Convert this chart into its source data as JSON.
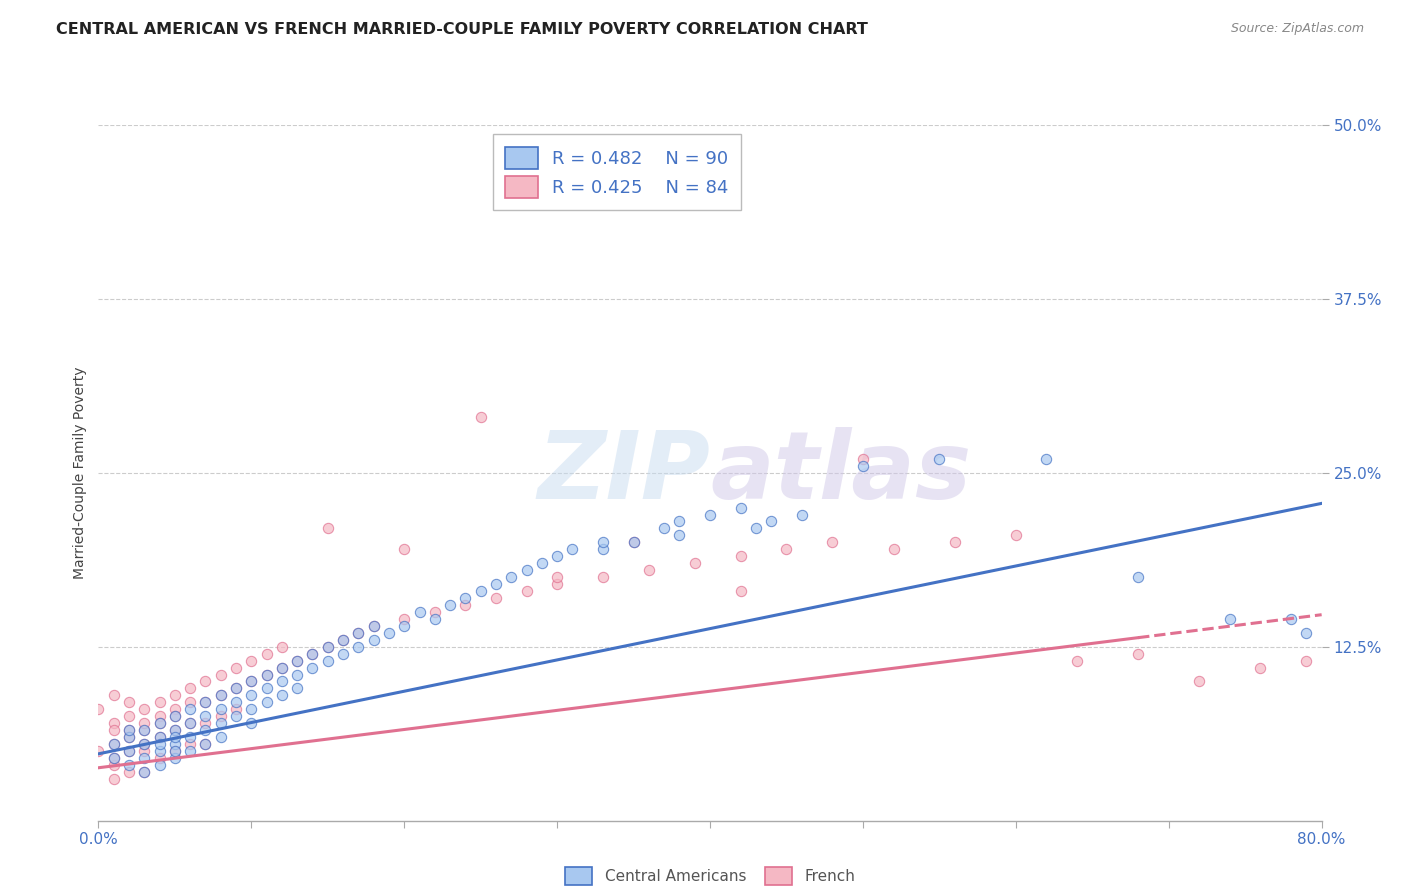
{
  "title": "CENTRAL AMERICAN VS FRENCH MARRIED-COUPLE FAMILY POVERTY CORRELATION CHART",
  "source": "Source: ZipAtlas.com",
  "ylabel": "Married-Couple Family Poverty",
  "xlim": [
    0.0,
    0.8
  ],
  "ylim": [
    0.0,
    0.5
  ],
  "xticks": [
    0.0,
    0.1,
    0.2,
    0.3,
    0.4,
    0.5,
    0.6,
    0.7,
    0.8
  ],
  "xtick_labels": [
    "0.0%",
    "",
    "",
    "",
    "",
    "",
    "",
    "",
    "80.0%"
  ],
  "ytick_labels": [
    "12.5%",
    "25.0%",
    "37.5%",
    "50.0%"
  ],
  "yticks": [
    0.125,
    0.25,
    0.375,
    0.5
  ],
  "legend_r1": "R = 0.482",
  "legend_n1": "N = 90",
  "legend_r2": "R = 0.425",
  "legend_n2": "N = 84",
  "blue_color": "#A8C8F0",
  "pink_color": "#F5B8C4",
  "blue_line_color": "#4472C4",
  "pink_line_color": "#E07090",
  "r_n_color": "#4472C4",
  "background_color": "#FFFFFF",
  "watermark": "ZIPatlas",
  "title_fontsize": 11.5,
  "blue_trend_y_start": 0.048,
  "blue_trend_y_end": 0.228,
  "pink_trend_y_start": 0.038,
  "pink_trend_y_end": 0.148,
  "pink_trend_solid_end": 0.68,
  "grid_color": "#CCCCCC",
  "dot_size": 55,
  "dot_alpha": 0.7,
  "dot_linewidth": 0.8,
  "blue_x": [
    0.01,
    0.01,
    0.02,
    0.02,
    0.02,
    0.02,
    0.03,
    0.03,
    0.03,
    0.03,
    0.04,
    0.04,
    0.04,
    0.04,
    0.04,
    0.05,
    0.05,
    0.05,
    0.05,
    0.05,
    0.05,
    0.06,
    0.06,
    0.06,
    0.06,
    0.07,
    0.07,
    0.07,
    0.07,
    0.08,
    0.08,
    0.08,
    0.08,
    0.09,
    0.09,
    0.09,
    0.1,
    0.1,
    0.1,
    0.1,
    0.11,
    0.11,
    0.11,
    0.12,
    0.12,
    0.12,
    0.13,
    0.13,
    0.13,
    0.14,
    0.14,
    0.15,
    0.15,
    0.16,
    0.16,
    0.17,
    0.17,
    0.18,
    0.18,
    0.19,
    0.2,
    0.21,
    0.22,
    0.23,
    0.24,
    0.25,
    0.26,
    0.27,
    0.28,
    0.29,
    0.3,
    0.31,
    0.33,
    0.35,
    0.37,
    0.38,
    0.4,
    0.42,
    0.44,
    0.46,
    0.33,
    0.38,
    0.43,
    0.5,
    0.55,
    0.62,
    0.68,
    0.74,
    0.78,
    0.79
  ],
  "blue_y": [
    0.055,
    0.045,
    0.06,
    0.05,
    0.04,
    0.065,
    0.055,
    0.045,
    0.065,
    0.035,
    0.06,
    0.05,
    0.04,
    0.07,
    0.055,
    0.065,
    0.055,
    0.045,
    0.075,
    0.06,
    0.05,
    0.07,
    0.06,
    0.05,
    0.08,
    0.075,
    0.065,
    0.055,
    0.085,
    0.08,
    0.07,
    0.06,
    0.09,
    0.085,
    0.075,
    0.095,
    0.09,
    0.08,
    0.07,
    0.1,
    0.095,
    0.085,
    0.105,
    0.1,
    0.09,
    0.11,
    0.105,
    0.095,
    0.115,
    0.11,
    0.12,
    0.115,
    0.125,
    0.12,
    0.13,
    0.125,
    0.135,
    0.13,
    0.14,
    0.135,
    0.14,
    0.15,
    0.145,
    0.155,
    0.16,
    0.165,
    0.17,
    0.175,
    0.18,
    0.185,
    0.19,
    0.195,
    0.195,
    0.2,
    0.21,
    0.215,
    0.22,
    0.225,
    0.215,
    0.22,
    0.2,
    0.205,
    0.21,
    0.255,
    0.26,
    0.26,
    0.175,
    0.145,
    0.145,
    0.135
  ],
  "pink_x": [
    0.0,
    0.0,
    0.01,
    0.01,
    0.01,
    0.01,
    0.01,
    0.01,
    0.01,
    0.02,
    0.02,
    0.02,
    0.02,
    0.02,
    0.02,
    0.03,
    0.03,
    0.03,
    0.03,
    0.03,
    0.03,
    0.04,
    0.04,
    0.04,
    0.04,
    0.04,
    0.05,
    0.05,
    0.05,
    0.05,
    0.05,
    0.06,
    0.06,
    0.06,
    0.06,
    0.07,
    0.07,
    0.07,
    0.07,
    0.08,
    0.08,
    0.08,
    0.09,
    0.09,
    0.09,
    0.1,
    0.1,
    0.11,
    0.11,
    0.12,
    0.12,
    0.13,
    0.14,
    0.15,
    0.16,
    0.17,
    0.18,
    0.2,
    0.22,
    0.24,
    0.26,
    0.28,
    0.3,
    0.33,
    0.36,
    0.39,
    0.42,
    0.45,
    0.48,
    0.52,
    0.56,
    0.6,
    0.64,
    0.68,
    0.72,
    0.76,
    0.79,
    0.15,
    0.2,
    0.25,
    0.3,
    0.35,
    0.42,
    0.5
  ],
  "pink_y": [
    0.08,
    0.05,
    0.09,
    0.07,
    0.055,
    0.04,
    0.065,
    0.045,
    0.03,
    0.085,
    0.065,
    0.05,
    0.035,
    0.075,
    0.06,
    0.08,
    0.065,
    0.05,
    0.035,
    0.07,
    0.055,
    0.075,
    0.06,
    0.045,
    0.085,
    0.07,
    0.08,
    0.065,
    0.05,
    0.09,
    0.075,
    0.085,
    0.07,
    0.055,
    0.095,
    0.085,
    0.07,
    0.055,
    0.1,
    0.09,
    0.075,
    0.105,
    0.095,
    0.08,
    0.11,
    0.1,
    0.115,
    0.105,
    0.12,
    0.11,
    0.125,
    0.115,
    0.12,
    0.125,
    0.13,
    0.135,
    0.14,
    0.145,
    0.15,
    0.155,
    0.16,
    0.165,
    0.17,
    0.175,
    0.18,
    0.185,
    0.19,
    0.195,
    0.2,
    0.195,
    0.2,
    0.205,
    0.115,
    0.12,
    0.1,
    0.11,
    0.115,
    0.21,
    0.195,
    0.29,
    0.175,
    0.2,
    0.165,
    0.26
  ]
}
